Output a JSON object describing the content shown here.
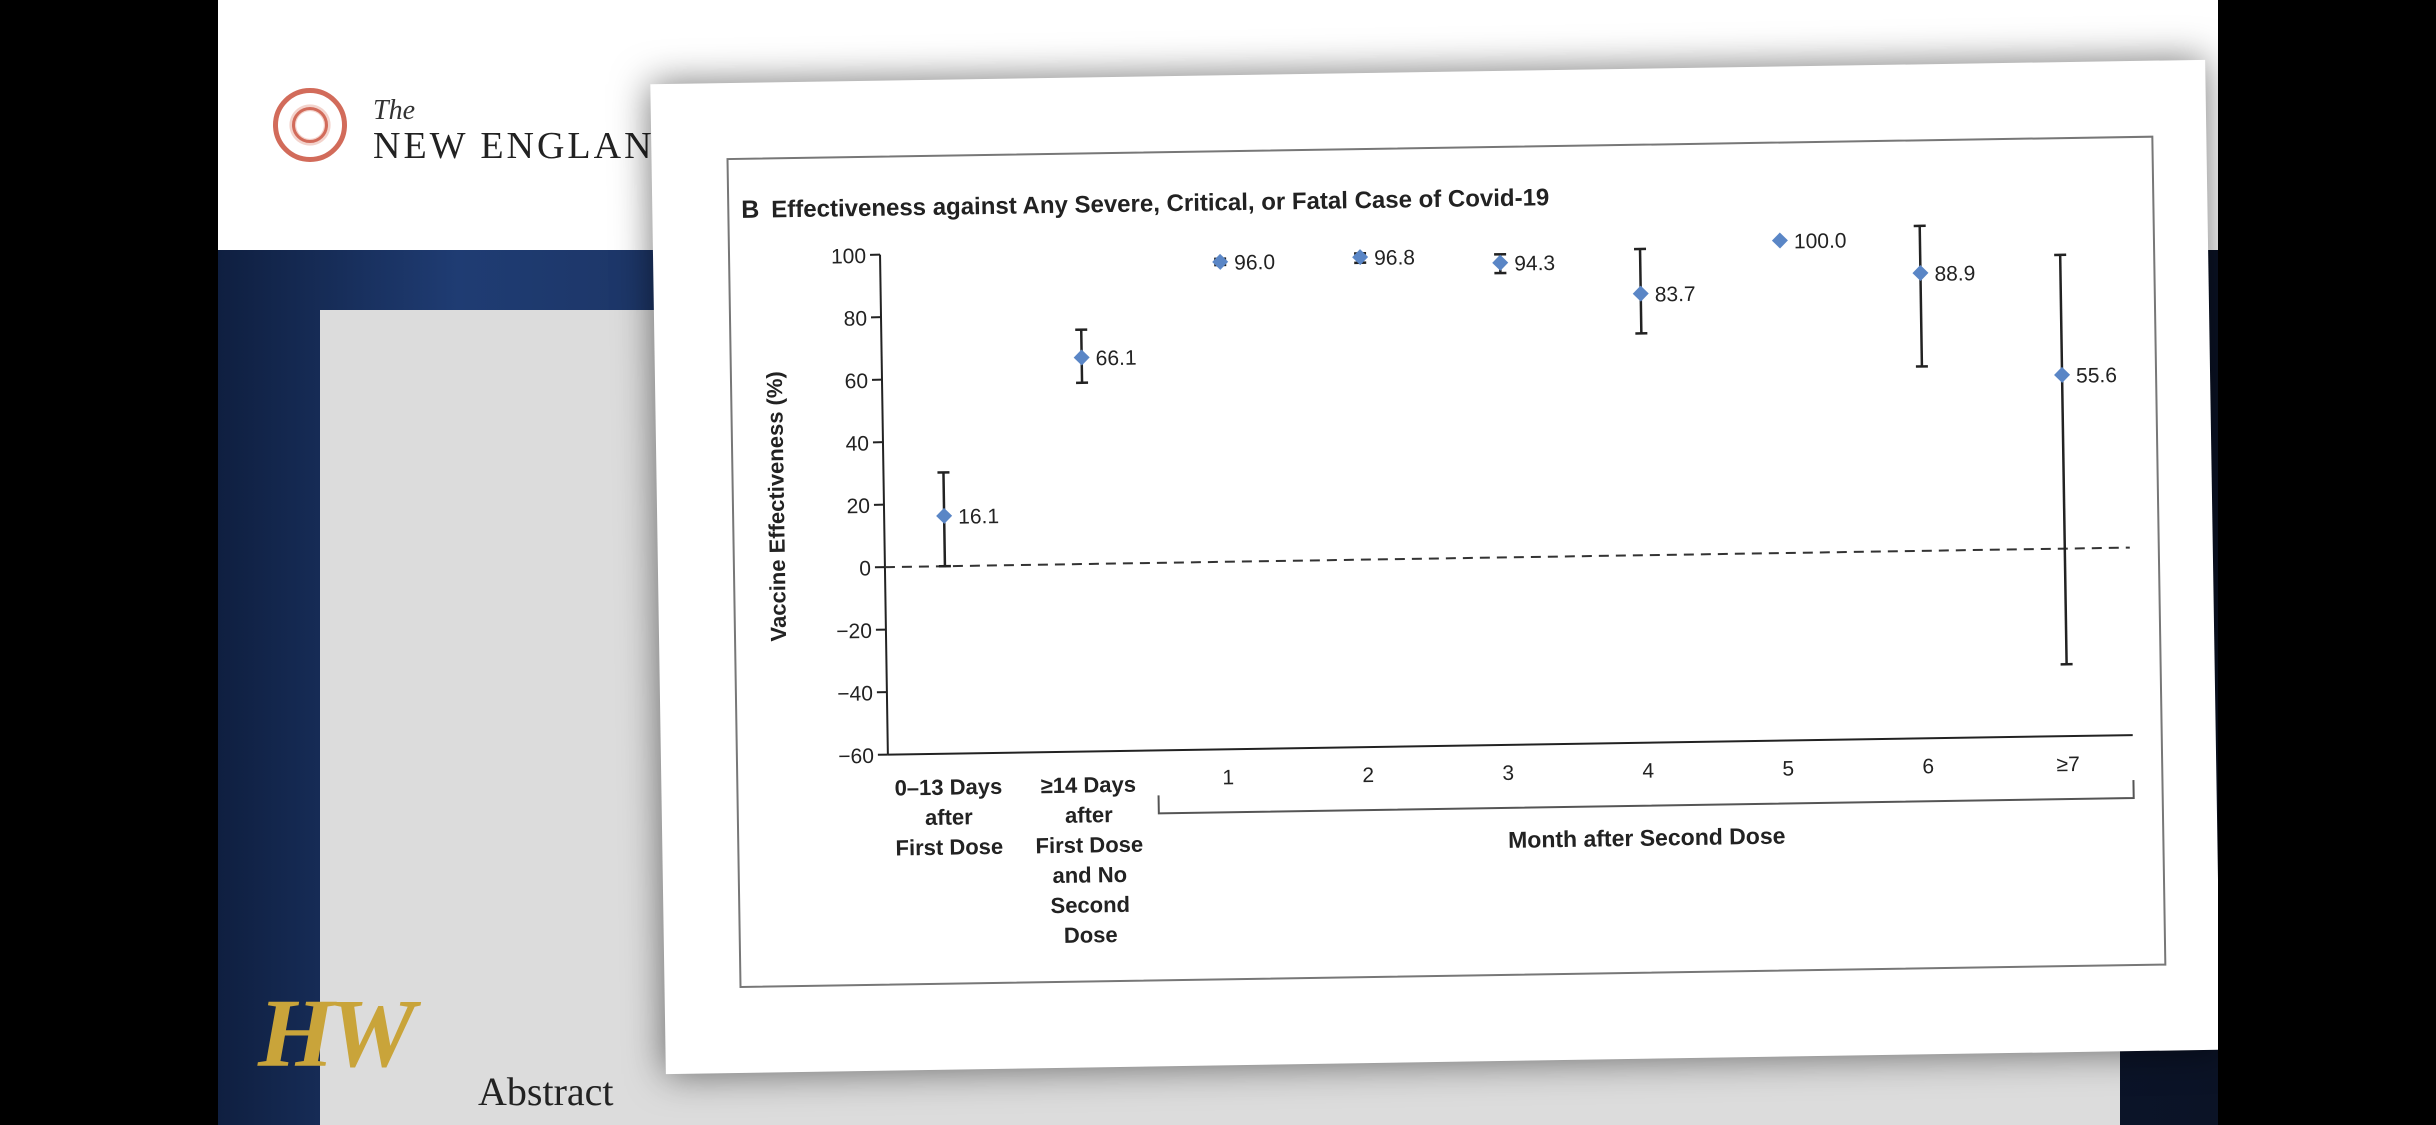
{
  "header": {
    "journal_the": "The",
    "journal_name": "NEW ENGLAND JOU",
    "search_icon": "search-icon",
    "menu_icon": "menu-icon"
  },
  "article": {
    "abstract_title": "Abstract"
  },
  "watermark": {
    "text": "HW"
  },
  "colors": {
    "marker": "#5a86c6",
    "errorbar": "#222222",
    "accent_red": "#d26b5a"
  },
  "chart_data": {
    "type": "scatter",
    "panel_letter": "B",
    "title": "Effectiveness against Any Severe, Critical, or Fatal Case of Covid-19",
    "ylabel": "Vaccine Effectiveness (%)",
    "ylim": [
      -60,
      100
    ],
    "yticks": [
      "100",
      "80",
      "60",
      "40",
      "20",
      "0",
      "−20",
      "−40",
      "−60"
    ],
    "categories": [
      [
        "0–13 Days",
        "after",
        "First Dose"
      ],
      [
        "≥14 Days",
        "after",
        "First Dose",
        "and No",
        "Second",
        "Dose"
      ],
      [
        "1"
      ],
      [
        "2"
      ],
      [
        "3"
      ],
      [
        "4"
      ],
      [
        "5"
      ],
      [
        "6"
      ],
      [
        "≥7"
      ]
    ],
    "group_label": "Month after Second Dose",
    "values": [
      16.1,
      66.1,
      96.0,
      96.8,
      94.3,
      83.7,
      100.0,
      88.9,
      55.6
    ],
    "value_labels": [
      "16.1",
      "66.1",
      "96.0",
      "96.8",
      "94.3",
      "83.7",
      "100.0",
      "88.9",
      "55.6"
    ],
    "ci_low": [
      0,
      58,
      95,
      95,
      91,
      71,
      100,
      59,
      -37
    ],
    "ci_high": [
      30,
      75,
      97,
      98,
      97,
      98,
      100,
      104,
      94
    ],
    "reference_line": 0,
    "grid": false
  }
}
